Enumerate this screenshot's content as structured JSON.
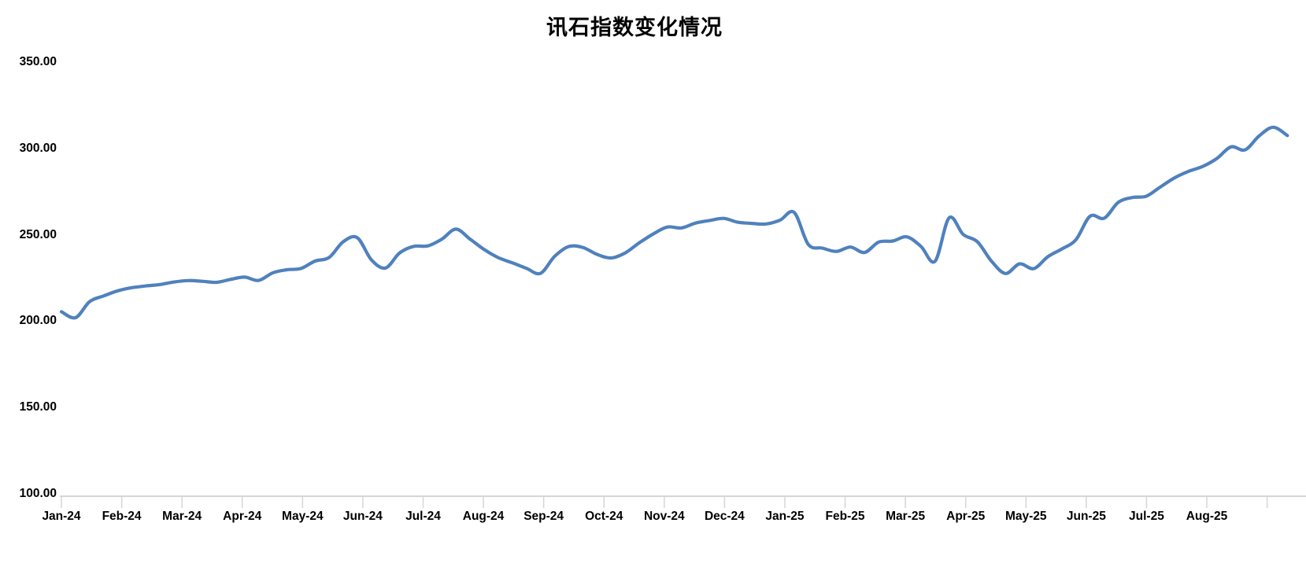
{
  "chart_data": {
    "type": "line",
    "title": "讯石指数变化情况",
    "xlabel": "",
    "ylabel": "",
    "grid": "off",
    "legend": "none",
    "y_axis": {
      "min": 100,
      "max": 350,
      "tick_step": 50,
      "tick_labels": [
        "350.00",
        "300.00",
        "250.00",
        "200.00",
        "150.00",
        "100.00"
      ],
      "tick_values": [
        350,
        300,
        250,
        200,
        150,
        100
      ]
    },
    "x_axis": {
      "labels": [
        "Jan-24",
        "Feb-24",
        "Mar-24",
        "Apr-24",
        "May-24",
        "Jun-24",
        "Jul-24",
        "Aug-24",
        "Sep-24",
        "Oct-24",
        "Nov-24",
        "Dec-24",
        "Jan-25",
        "Feb-25",
        "Mar-25",
        "Apr-25",
        "May-25",
        "Jun-25",
        "Jul-25",
        "Aug-25"
      ]
    },
    "series": [
      {
        "name": "讯石指数",
        "color": "#4F81BD",
        "frequency": "weekly",
        "smoothed": true,
        "values": [
          205.5,
          202.0,
          211.3,
          214.6,
          217.6,
          219.4,
          220.4,
          221.2,
          222.7,
          223.5,
          223.1,
          222.5,
          224.2,
          225.5,
          223.6,
          228.0,
          229.8,
          230.5,
          234.8,
          236.9,
          246.0,
          248.3,
          235.5,
          230.8,
          239.5,
          243.3,
          243.6,
          247.5,
          253.3,
          247.5,
          241.5,
          236.8,
          233.8,
          230.6,
          227.7,
          237.5,
          243.2,
          242.7,
          238.7,
          236.6,
          239.5,
          245.3,
          250.5,
          254.5,
          254.0,
          256.8,
          258.3,
          259.5,
          257.3,
          256.6,
          256.3,
          258.5,
          263.0,
          244.5,
          242.3,
          240.4,
          242.9,
          239.8,
          245.8,
          246.4,
          248.8,
          243.3,
          234.7,
          259.9,
          250.2,
          246.0,
          234.8,
          227.6,
          233.2,
          230.4,
          237.3,
          241.8,
          247.2,
          260.8,
          259.6,
          268.8,
          271.6,
          272.4,
          277.8,
          283.0,
          286.8,
          289.6,
          294.2,
          300.9,
          299.2,
          307.3,
          312.3,
          307.5
        ]
      }
    ],
    "axis_color": "#D6D6D6"
  }
}
